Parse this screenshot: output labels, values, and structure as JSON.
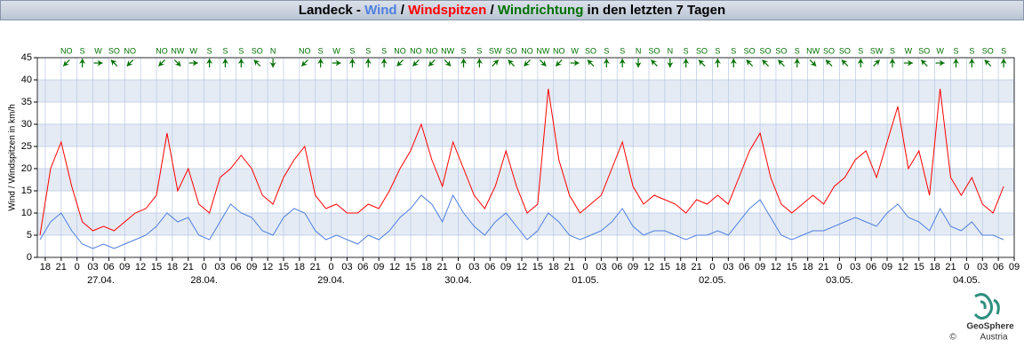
{
  "chart_data": {
    "type": "line",
    "title": [
      "Landeck - ",
      "Wind",
      " / ",
      "Windspitzen",
      " / ",
      "Windrichtung",
      " in den letzten 7 Tagen"
    ],
    "ylabel": "Wind / Windspitzen in km/h",
    "xlim": [
      -7.5,
      177
    ],
    "ylim": [
      0,
      45
    ],
    "yticks": [
      0,
      5,
      10,
      15,
      20,
      25,
      30,
      35,
      40,
      45
    ],
    "xticks": [
      {
        "value": -6,
        "label": "18"
      },
      {
        "value": -3,
        "label": "21"
      },
      {
        "value": 0,
        "label": "0"
      },
      {
        "value": 3,
        "label": "03"
      },
      {
        "value": 6,
        "label": "06"
      },
      {
        "value": 9,
        "label": "09"
      },
      {
        "value": 12,
        "label": "12"
      },
      {
        "value": 15,
        "label": "15"
      },
      {
        "value": 18,
        "label": "18"
      },
      {
        "value": 21,
        "label": "21"
      },
      {
        "value": 24,
        "label": "0"
      },
      {
        "value": 27,
        "label": "03"
      },
      {
        "value": 30,
        "label": "06"
      },
      {
        "value": 33,
        "label": "09"
      },
      {
        "value": 36,
        "label": "12"
      },
      {
        "value": 39,
        "label": "15"
      },
      {
        "value": 42,
        "label": "18"
      },
      {
        "value": 45,
        "label": "21"
      },
      {
        "value": 48,
        "label": "0"
      },
      {
        "value": 51,
        "label": "03"
      },
      {
        "value": 54,
        "label": "06"
      },
      {
        "value": 57,
        "label": "09"
      },
      {
        "value": 60,
        "label": "12"
      },
      {
        "value": 63,
        "label": "15"
      },
      {
        "value": 66,
        "label": "18"
      },
      {
        "value": 69,
        "label": "21"
      },
      {
        "value": 72,
        "label": "0"
      },
      {
        "value": 75,
        "label": "03"
      },
      {
        "value": 78,
        "label": "06"
      },
      {
        "value": 81,
        "label": "09"
      },
      {
        "value": 84,
        "label": "12"
      },
      {
        "value": 87,
        "label": "15"
      },
      {
        "value": 90,
        "label": "18"
      },
      {
        "value": 93,
        "label": "21"
      },
      {
        "value": 96,
        "label": "0"
      },
      {
        "value": 99,
        "label": "03"
      },
      {
        "value": 102,
        "label": "06"
      },
      {
        "value": 105,
        "label": "09"
      },
      {
        "value": 108,
        "label": "12"
      },
      {
        "value": 111,
        "label": "15"
      },
      {
        "value": 114,
        "label": "18"
      },
      {
        "value": 117,
        "label": "21"
      },
      {
        "value": 120,
        "label": "0"
      },
      {
        "value": 123,
        "label": "03"
      },
      {
        "value": 126,
        "label": "06"
      },
      {
        "value": 129,
        "label": "09"
      },
      {
        "value": 132,
        "label": "12"
      },
      {
        "value": 135,
        "label": "15"
      },
      {
        "value": 138,
        "label": "18"
      },
      {
        "value": 141,
        "label": "21"
      },
      {
        "value": 144,
        "label": "0"
      },
      {
        "value": 147,
        "label": "03"
      },
      {
        "value": 150,
        "label": "06"
      },
      {
        "value": 153,
        "label": "09"
      },
      {
        "value": 156,
        "label": "12"
      },
      {
        "value": 159,
        "label": "15"
      },
      {
        "value": 162,
        "label": "18"
      },
      {
        "value": 165,
        "label": "21"
      },
      {
        "value": 168,
        "label": "0"
      },
      {
        "value": 171,
        "label": "03"
      },
      {
        "value": 174,
        "label": "06"
      },
      {
        "value": 177,
        "label": "09"
      }
    ],
    "date_labels": [
      {
        "value": 4.5,
        "label": "27.04."
      },
      {
        "value": 24,
        "label": "28.04."
      },
      {
        "value": 48,
        "label": "29.04."
      },
      {
        "value": 72,
        "label": "30.04."
      },
      {
        "value": 96,
        "label": "01.05."
      },
      {
        "value": 120,
        "label": "02.05."
      },
      {
        "value": 144,
        "label": "03.05."
      },
      {
        "value": 168,
        "label": "04.05."
      }
    ],
    "grid": true,
    "x": [
      -7,
      -5,
      -3,
      -1,
      1,
      3,
      5,
      7,
      9,
      11,
      13,
      15,
      17,
      19,
      21,
      23,
      25,
      27,
      29,
      31,
      33,
      35,
      37,
      39,
      41,
      43,
      45,
      47,
      49,
      51,
      53,
      55,
      57,
      59,
      61,
      63,
      65,
      67,
      69,
      71,
      73,
      75,
      77,
      79,
      81,
      83,
      85,
      87,
      89,
      91,
      93,
      95,
      97,
      99,
      101,
      103,
      105,
      107,
      109,
      111,
      113,
      115,
      117,
      119,
      121,
      123,
      125,
      127,
      129,
      131,
      133,
      135,
      137,
      139,
      141,
      143,
      145,
      147,
      149,
      151,
      153,
      155,
      157,
      159,
      161,
      163,
      165,
      167,
      169,
      171,
      173,
      175
    ],
    "series": [
      {
        "name": "Windspitzen",
        "color": "#ff0000",
        "values": [
          5,
          20,
          26,
          16,
          8,
          6,
          7,
          6,
          8,
          10,
          11,
          14,
          28,
          15,
          20,
          12,
          10,
          18,
          20,
          23,
          20,
          14,
          12,
          18,
          22,
          25,
          14,
          11,
          12,
          10,
          10,
          12,
          11,
          15,
          20,
          24,
          30,
          22,
          16,
          26,
          20,
          14,
          11,
          16,
          24,
          16,
          10,
          12,
          38,
          22,
          14,
          10,
          12,
          14,
          20,
          26,
          16,
          12,
          14,
          13,
          12,
          10,
          13,
          12,
          14,
          12,
          18,
          24,
          28,
          18,
          12,
          10,
          12,
          14,
          12,
          16,
          18,
          22,
          24,
          18,
          26,
          34,
          20,
          24,
          14,
          38,
          18,
          14,
          18,
          12,
          10,
          16
        ]
      },
      {
        "name": "Wind",
        "color": "#4f7fe0",
        "values": [
          4,
          8,
          10,
          6,
          3,
          2,
          3,
          2,
          3,
          4,
          5,
          7,
          10,
          8,
          9,
          5,
          4,
          8,
          12,
          10,
          9,
          6,
          5,
          9,
          11,
          10,
          6,
          4,
          5,
          4,
          3,
          5,
          4,
          6,
          9,
          11,
          14,
          12,
          8,
          14,
          10,
          7,
          5,
          8,
          10,
          7,
          4,
          6,
          10,
          8,
          5,
          4,
          5,
          6,
          8,
          11,
          7,
          5,
          6,
          6,
          5,
          4,
          5,
          5,
          6,
          5,
          8,
          11,
          13,
          9,
          5,
          4,
          5,
          6,
          6,
          7,
          8,
          9,
          8,
          7,
          10,
          12,
          9,
          8,
          6,
          11,
          7,
          6,
          8,
          5,
          5,
          4
        ]
      }
    ],
    "directions": {
      "name": "Windrichtung",
      "color": "#007000",
      "x": [
        -2,
        1,
        4,
        7,
        10,
        16,
        19,
        22,
        25,
        28,
        31,
        34,
        37,
        43,
        46,
        49,
        52,
        55,
        58,
        61,
        64,
        67,
        70,
        73,
        76,
        79,
        82,
        85,
        88,
        91,
        94,
        97,
        100,
        103,
        106,
        109,
        112,
        115,
        118,
        121,
        124,
        127,
        130,
        133,
        136,
        139,
        142,
        145,
        148,
        151,
        154,
        157,
        160,
        163,
        166,
        169,
        172,
        175
      ],
      "labels": [
        "NO",
        "S",
        "W",
        "SO",
        "NO",
        "NO",
        "NW",
        "W",
        "S",
        "S",
        "S",
        "SO",
        "N",
        "NO",
        "S",
        "W",
        "S",
        "S",
        "S",
        "NO",
        "NO",
        "NO",
        "NW",
        "S",
        "S",
        "SW",
        "SO",
        "NO",
        "NW",
        "NO",
        "W",
        "SO",
        "S",
        "S",
        "N",
        "SO",
        "N",
        "S",
        "SO",
        "S",
        "S",
        "SO",
        "SO",
        "SO",
        "S",
        "NW",
        "SO",
        "SO",
        "S",
        "SW",
        "S",
        "W",
        "SO",
        "W",
        "S",
        "S",
        "SO",
        "S"
      ]
    },
    "logo": {
      "name": "GeoSphere",
      "sub": "Austria",
      "copyright": "©"
    }
  }
}
